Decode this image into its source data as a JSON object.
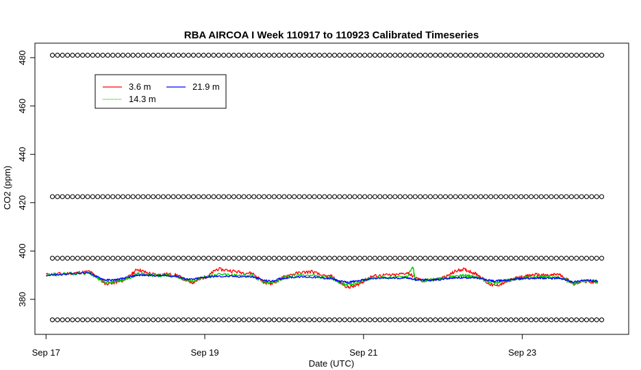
{
  "chart_data": {
    "type": "line",
    "title": "RBA AIRCOA I  Week 110917 to 110923  Calibrated Timeseries",
    "xlabel": "Date (UTC)",
    "ylabel": "CO2 (ppm)",
    "x_unit": "days",
    "x_range": [
      "2011-09-17 00:00",
      "2011-09-24 00:00"
    ],
    "xlim_days": [
      -0.14,
      7.34
    ],
    "ylim": [
      365.5,
      486
    ],
    "x_ticks": [
      {
        "day": 0,
        "label": "Sep 17"
      },
      {
        "day": 2,
        "label": "Sep 19"
      },
      {
        "day": 4,
        "label": "Sep 21"
      },
      {
        "day": 6,
        "label": "Sep 23"
      }
    ],
    "y_ticks": [
      380,
      400,
      420,
      440,
      460,
      480
    ],
    "grid": false,
    "legend": {
      "placement": "top-left",
      "entries": [
        {
          "name": "3.6 m",
          "color": "#ff0000"
        },
        {
          "name": "14.3 m",
          "color": "#00cc00"
        },
        {
          "name": "21.9 m",
          "color": "#0000ff"
        }
      ]
    },
    "calibration_points": {
      "marker": "circle",
      "levels_ppm": [
        371.5,
        397,
        422.5,
        481
      ],
      "x_start_day": 0.08,
      "x_end_day": 7.0,
      "count_per_level": 110
    },
    "series": [
      {
        "name": "3.6 m",
        "color": "#ff0000",
        "points": [
          [
            0.0,
            390.2
          ],
          [
            0.2,
            390.6
          ],
          [
            0.4,
            391.0
          ],
          [
            0.55,
            391.5
          ],
          [
            0.65,
            389.0
          ],
          [
            0.75,
            386.5
          ],
          [
            0.85,
            386.8
          ],
          [
            0.95,
            387.5
          ],
          [
            1.05,
            389.5
          ],
          [
            1.15,
            392.5
          ],
          [
            1.25,
            391.2
          ],
          [
            1.4,
            390.0
          ],
          [
            1.5,
            390.5
          ],
          [
            1.65,
            390.0
          ],
          [
            1.75,
            388.0
          ],
          [
            1.85,
            387.0
          ],
          [
            1.95,
            388.5
          ],
          [
            2.05,
            389.8
          ],
          [
            2.15,
            392.5
          ],
          [
            2.3,
            392.0
          ],
          [
            2.45,
            391.2
          ],
          [
            2.6,
            390.8
          ],
          [
            2.75,
            387.0
          ],
          [
            2.85,
            386.5
          ],
          [
            2.95,
            388.5
          ],
          [
            3.05,
            390.0
          ],
          [
            3.2,
            391.0
          ],
          [
            3.35,
            391.5
          ],
          [
            3.5,
            389.5
          ],
          [
            3.6,
            389.5
          ],
          [
            3.7,
            387.0
          ],
          [
            3.8,
            385.0
          ],
          [
            3.9,
            385.5
          ],
          [
            4.0,
            387.5
          ],
          [
            4.1,
            389.5
          ],
          [
            4.25,
            390.0
          ],
          [
            4.4,
            390.0
          ],
          [
            4.55,
            391.0
          ],
          [
            4.65,
            389.0
          ],
          [
            4.75,
            387.5
          ],
          [
            4.85,
            388.0
          ],
          [
            4.95,
            388.5
          ],
          [
            5.05,
            389.5
          ],
          [
            5.15,
            391.5
          ],
          [
            5.25,
            392.5
          ],
          [
            5.35,
            391.5
          ],
          [
            5.45,
            390.0
          ],
          [
            5.55,
            387.0
          ],
          [
            5.65,
            385.5
          ],
          [
            5.75,
            386.5
          ],
          [
            5.85,
            388.0
          ],
          [
            5.95,
            389.0
          ],
          [
            6.05,
            389.5
          ],
          [
            6.15,
            390.2
          ],
          [
            6.25,
            390.0
          ],
          [
            6.35,
            389.8
          ],
          [
            6.45,
            390.5
          ],
          [
            6.55,
            388.5
          ],
          [
            6.65,
            386.5
          ],
          [
            6.75,
            387.5
          ],
          [
            6.85,
            387.3
          ],
          [
            6.95,
            387.0
          ]
        ]
      },
      {
        "name": "14.3 m",
        "color": "#00cc00",
        "points": [
          [
            0.0,
            390.1
          ],
          [
            0.2,
            390.4
          ],
          [
            0.4,
            390.8
          ],
          [
            0.55,
            391.0
          ],
          [
            0.65,
            388.8
          ],
          [
            0.75,
            387.0
          ],
          [
            0.85,
            387.3
          ],
          [
            0.95,
            388.0
          ],
          [
            1.05,
            389.0
          ],
          [
            1.15,
            390.5
          ],
          [
            1.25,
            390.3
          ],
          [
            1.4,
            389.8
          ],
          [
            1.5,
            390.0
          ],
          [
            1.65,
            389.6
          ],
          [
            1.75,
            388.2
          ],
          [
            1.85,
            387.5
          ],
          [
            1.95,
            388.8
          ],
          [
            2.05,
            389.5
          ],
          [
            2.15,
            390.2
          ],
          [
            2.3,
            390.0
          ],
          [
            2.45,
            389.8
          ],
          [
            2.6,
            389.8
          ],
          [
            2.75,
            387.2
          ],
          [
            2.85,
            386.8
          ],
          [
            2.95,
            388.2
          ],
          [
            3.05,
            389.5
          ],
          [
            3.2,
            390.0
          ],
          [
            3.35,
            389.8
          ],
          [
            3.5,
            389.0
          ],
          [
            3.6,
            388.8
          ],
          [
            3.7,
            387.0
          ],
          [
            3.8,
            386.0
          ],
          [
            3.9,
            386.5
          ],
          [
            4.0,
            387.8
          ],
          [
            4.1,
            388.8
          ],
          [
            4.25,
            389.0
          ],
          [
            4.4,
            389.0
          ],
          [
            4.55,
            389.2
          ],
          [
            4.62,
            394.0
          ],
          [
            4.65,
            388.0
          ],
          [
            4.75,
            387.8
          ],
          [
            4.85,
            388.0
          ],
          [
            4.95,
            388.3
          ],
          [
            5.05,
            389.0
          ],
          [
            5.15,
            389.5
          ],
          [
            5.25,
            389.8
          ],
          [
            5.35,
            389.5
          ],
          [
            5.45,
            389.0
          ],
          [
            5.55,
            387.5
          ],
          [
            5.65,
            386.8
          ],
          [
            5.75,
            387.5
          ],
          [
            5.85,
            388.0
          ],
          [
            5.95,
            388.5
          ],
          [
            6.05,
            389.0
          ],
          [
            6.15,
            389.0
          ],
          [
            6.25,
            389.2
          ],
          [
            6.35,
            389.0
          ],
          [
            6.45,
            389.2
          ],
          [
            6.55,
            388.0
          ],
          [
            6.65,
            386.2
          ],
          [
            6.75,
            387.6
          ],
          [
            6.85,
            387.5
          ],
          [
            6.95,
            387.3
          ]
        ]
      },
      {
        "name": "21.9 m",
        "color": "#0000ff",
        "points": [
          [
            0.0,
            390.0
          ],
          [
            0.2,
            390.3
          ],
          [
            0.4,
            390.7
          ],
          [
            0.55,
            391.0
          ],
          [
            0.65,
            389.2
          ],
          [
            0.75,
            388.0
          ],
          [
            0.85,
            388.0
          ],
          [
            0.95,
            388.5
          ],
          [
            1.05,
            389.2
          ],
          [
            1.15,
            390.0
          ],
          [
            1.25,
            390.0
          ],
          [
            1.4,
            389.8
          ],
          [
            1.5,
            389.8
          ],
          [
            1.65,
            389.5
          ],
          [
            1.75,
            388.5
          ],
          [
            1.85,
            388.2
          ],
          [
            1.95,
            389.0
          ],
          [
            2.05,
            389.3
          ],
          [
            2.15,
            389.5
          ],
          [
            2.3,
            389.5
          ],
          [
            2.45,
            389.4
          ],
          [
            2.6,
            389.3
          ],
          [
            2.75,
            387.8
          ],
          [
            2.85,
            387.5
          ],
          [
            2.95,
            388.5
          ],
          [
            3.05,
            389.0
          ],
          [
            3.2,
            389.3
          ],
          [
            3.35,
            389.2
          ],
          [
            3.5,
            388.8
          ],
          [
            3.6,
            388.5
          ],
          [
            3.7,
            387.5
          ],
          [
            3.8,
            387.0
          ],
          [
            3.9,
            387.5
          ],
          [
            4.0,
            388.0
          ],
          [
            4.1,
            388.5
          ],
          [
            4.25,
            388.8
          ],
          [
            4.4,
            388.8
          ],
          [
            4.55,
            389.0
          ],
          [
            4.65,
            388.2
          ],
          [
            4.75,
            388.0
          ],
          [
            4.85,
            388.0
          ],
          [
            4.95,
            388.2
          ],
          [
            5.05,
            388.6
          ],
          [
            5.15,
            388.8
          ],
          [
            5.25,
            389.0
          ],
          [
            5.35,
            389.0
          ],
          [
            5.45,
            388.8
          ],
          [
            5.55,
            388.0
          ],
          [
            5.65,
            387.5
          ],
          [
            5.75,
            387.8
          ],
          [
            5.85,
            388.2
          ],
          [
            5.95,
            388.5
          ],
          [
            6.05,
            388.6
          ],
          [
            6.15,
            388.8
          ],
          [
            6.25,
            388.8
          ],
          [
            6.35,
            388.6
          ],
          [
            6.45,
            388.8
          ],
          [
            6.55,
            388.0
          ],
          [
            6.65,
            387.2
          ],
          [
            6.75,
            387.8
          ],
          [
            6.85,
            387.8
          ],
          [
            6.95,
            387.6
          ]
        ]
      }
    ]
  }
}
